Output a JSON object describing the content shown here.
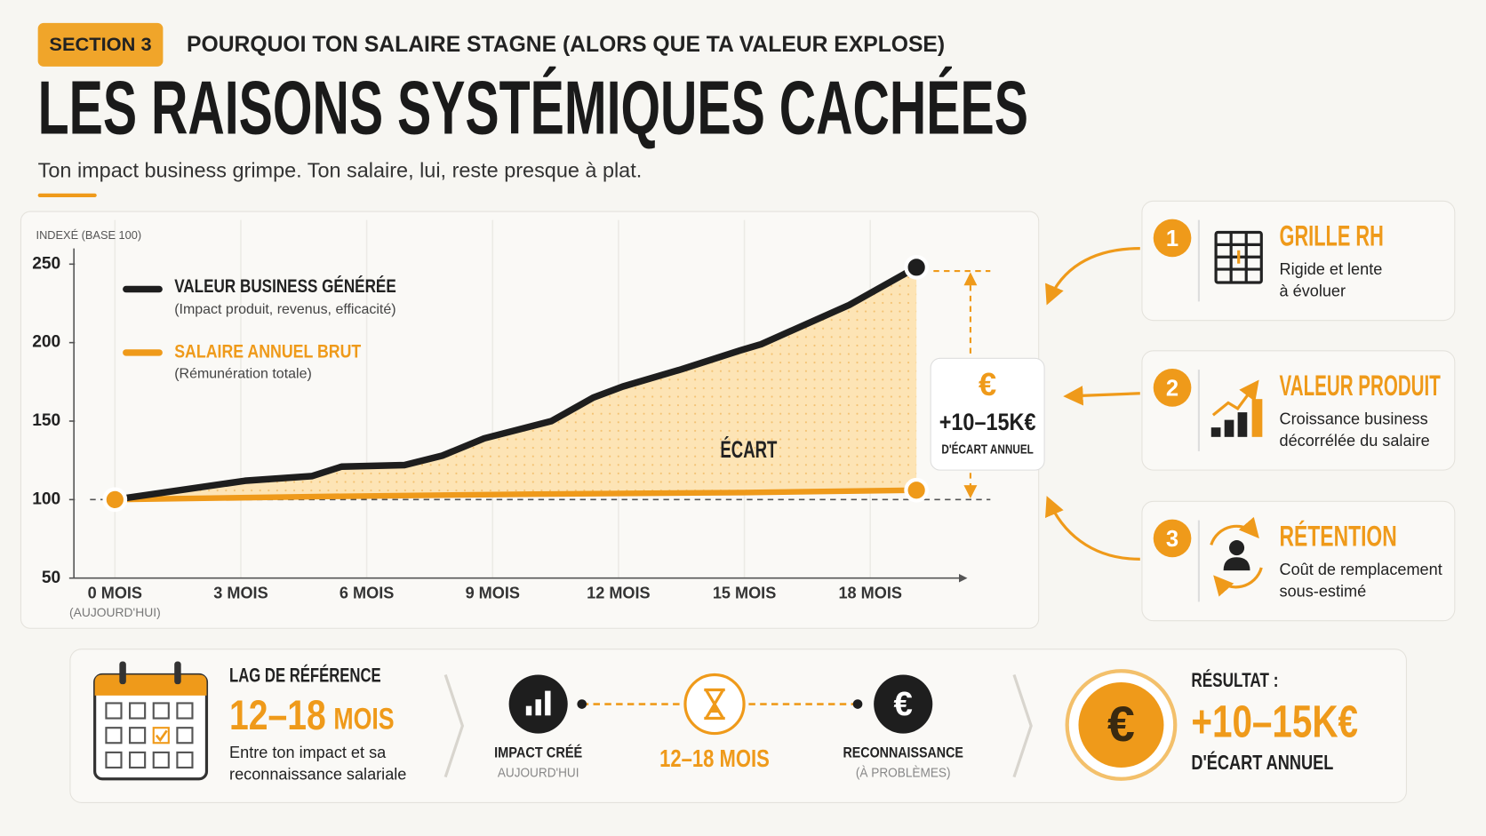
{
  "header": {
    "section": "SECTION 3",
    "subtitle": "POURQUOI TON SALAIRE STAGNE (ALORS QUE TA VALEUR EXPLOSE)",
    "title": "LES RAISONS SYSTÉMIQUES CACHÉES",
    "tagline": "Ton impact business grimpe. Ton salaire, lui, reste presque à plat."
  },
  "chart_data": {
    "type": "line",
    "y_label": "INDEXÉ (BASE 100)",
    "xlim": [
      -1,
      20.5
    ],
    "xticks": [
      {
        "value": 0,
        "label": "0 MOIS"
      },
      {
        "value": 3,
        "label": "3 MOIS"
      },
      {
        "value": 6,
        "label": "6 MOIS"
      },
      {
        "value": 9,
        "label": "9 MOIS"
      },
      {
        "value": 12,
        "label": "12 MOIS"
      },
      {
        "value": 15,
        "label": "15 MOIS"
      },
      {
        "value": 18,
        "label": "18 MOIS"
      }
    ],
    "x_note": "(AUJOURD'HUI)",
    "ylim": [
      50,
      260
    ],
    "yticks": [
      50,
      100,
      150,
      200,
      250
    ],
    "grid": true,
    "baseline": 100,
    "series": [
      {
        "name": "VALEUR BUSINESS GÉNÉRÉE",
        "description": "(Impact produit, revenus, efficacité)",
        "color": "#1e1e1e",
        "x": [
          0,
          3.1,
          4.7,
          5.4,
          6.9,
          7.8,
          8.8,
          10.4,
          11.4,
          12.1,
          13.5,
          14.9,
          15.4,
          17.5,
          19.1
        ],
        "values": [
          100,
          112,
          115,
          121,
          122,
          128,
          139,
          150,
          165,
          172,
          183,
          195,
          199,
          224,
          248
        ]
      },
      {
        "name": "SALAIRE ANNUEL BRUT",
        "description": "(Rémunération totale)",
        "color": "#ef9a1a",
        "x": [
          0,
          5,
          10,
          15,
          19.1
        ],
        "values": [
          100,
          102,
          103.5,
          104.5,
          106
        ]
      }
    ],
    "gap_label": "ÉCART",
    "gap_box": {
      "icon": "€",
      "value": "+10–15K€",
      "label": "D'ÉCART ANNUEL"
    }
  },
  "cards": [
    {
      "number": "1",
      "title": "GRILLE RH",
      "lines": [
        "Rigide et lente",
        "à évoluer"
      ]
    },
    {
      "number": "2",
      "title": "VALEUR PRODUIT",
      "lines": [
        "Croissance business",
        "décorrélée du salaire"
      ]
    },
    {
      "number": "3",
      "title": "RÉTENTION",
      "lines": [
        "Coût de remplacement",
        "sous-estimé"
      ]
    }
  ],
  "timeline": {
    "lag_title": "LAG DE RÉFÉRENCE",
    "lag_value": "12–18",
    "lag_unit": "MOIS",
    "lag_lines": [
      "Entre ton impact et sa",
      "reconnaissance salariale"
    ],
    "start": {
      "label": "IMPACT CRÉÉ",
      "sublabel": "AUJOURD'HUI"
    },
    "duration": "12–18 MOIS",
    "end": {
      "icon": "€",
      "label": "RECONNAISSANCE",
      "sublabel": "(À PROBLÈMES)"
    },
    "result": {
      "icon": "€",
      "title": "RÉSULTAT :",
      "value": "+10–15K€",
      "label": "D'ÉCART ANNUEL"
    }
  }
}
